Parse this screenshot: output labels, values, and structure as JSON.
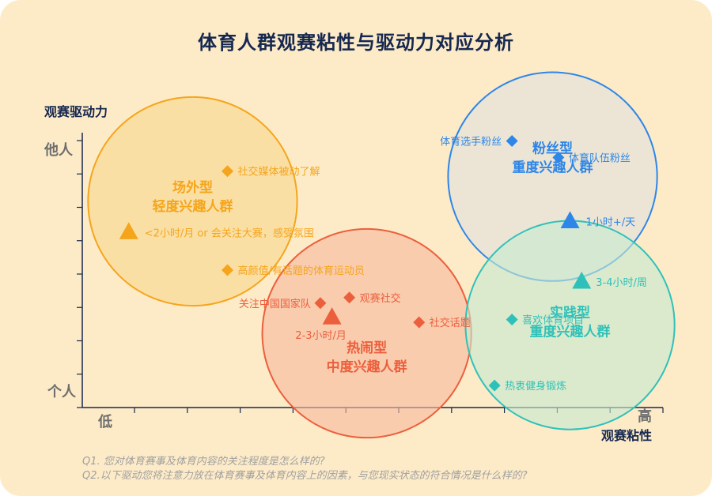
{
  "chart_data": {
    "type": "scatter",
    "title": "体育人群观赛粘性与驱动力对应分析",
    "xlabel": "观赛粘性",
    "ylabel": "观赛驱动力",
    "x_ticks": [
      "低",
      "高"
    ],
    "y_ticks": [
      "个人",
      "他人"
    ],
    "xlim": [
      0,
      100
    ],
    "ylim": [
      0,
      100
    ],
    "groups": [
      {
        "name": "场外型",
        "subtitle": "轻度兴趣人群",
        "color": "#f5a51c",
        "fill": "#f8d98e",
        "center": [
          19,
          75
        ],
        "radius": 18
      },
      {
        "name": "粉丝型",
        "subtitle": "重度兴趣人群",
        "color": "#2e86e8",
        "fill": "#e2e2dd",
        "center": [
          81,
          84
        ],
        "radius": 18
      },
      {
        "name": "热闹型",
        "subtitle": "中度兴趣人群",
        "color": "#ec5f3d",
        "fill": "#f7b99e",
        "center": [
          49,
          27
        ],
        "radius": 18
      },
      {
        "name": "实践型",
        "subtitle": "重度兴趣人群",
        "color": "#2fc1b9",
        "fill": "#c6ead1",
        "center": [
          84,
          30
        ],
        "radius": 18
      }
    ],
    "points": [
      {
        "label": "社交媒体被动了解",
        "shape": "diamond",
        "group": 0,
        "x": 25,
        "y": 86
      },
      {
        "label": "<2小时/月 or 会关注大赛，感受氛围",
        "shape": "triangle",
        "group": 0,
        "x": 8,
        "y": 64
      },
      {
        "label": "高颜值/有话题的体育运动员",
        "shape": "diamond",
        "group": 0,
        "x": 25,
        "y": 50
      },
      {
        "label": "体育选手粉丝",
        "shape": "diamond",
        "group": 1,
        "x": 74,
        "y": 97
      },
      {
        "label": "体育队伍粉丝",
        "shape": "diamond",
        "group": 1,
        "x": 82,
        "y": 91
      },
      {
        "label": "1小时+/天",
        "shape": "triangle",
        "group": 1,
        "x": 84,
        "y": 68
      },
      {
        "label": "关注中国国家队",
        "shape": "diamond",
        "group": 2,
        "x": 41,
        "y": 38
      },
      {
        "label": "观赛社交",
        "shape": "diamond",
        "group": 2,
        "x": 46,
        "y": 40
      },
      {
        "label": "2-3小时/月",
        "shape": "triangle",
        "group": 2,
        "x": 43,
        "y": 33
      },
      {
        "label": "社交话题",
        "shape": "diamond",
        "group": 2,
        "x": 58,
        "y": 31
      },
      {
        "label": "3-4小时/周",
        "shape": "triangle",
        "group": 3,
        "x": 86,
        "y": 46
      },
      {
        "label": "喜欢体育项目",
        "shape": "diamond",
        "group": 3,
        "x": 74,
        "y": 32
      },
      {
        "label": "热衷健身锻炼",
        "shape": "diamond",
        "group": 3,
        "x": 71,
        "y": 8
      }
    ],
    "grid": false,
    "axis_color": "#16284f"
  },
  "footnotes": {
    "q1": "Q1. 您对体育赛事及体育内容的关注程度是怎么样的?",
    "q2": "Q2.以下驱动您将注意力放在体育赛事及体育内容上的因素，与您现实状态的符合情况是什么样的?"
  }
}
